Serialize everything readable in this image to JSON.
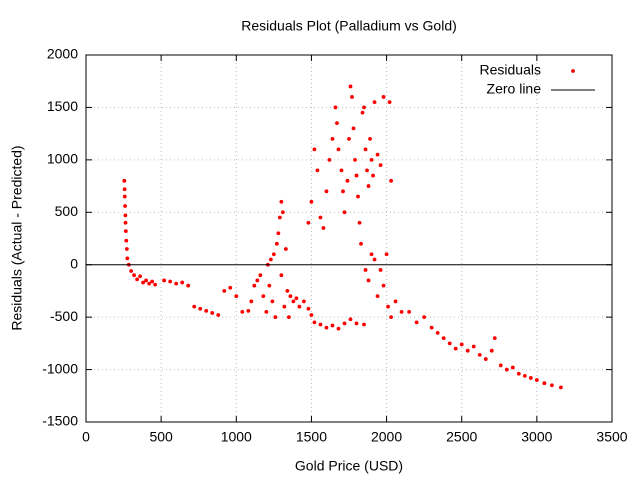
{
  "chart_data": {
    "type": "scatter",
    "title": "Residuals Plot (Palladium vs Gold)",
    "x_label": "Gold Price (USD)",
    "y_label": "Residuals (Actual - Predicted)",
    "xlim": [
      0,
      3500
    ],
    "ylim": [
      -1500,
      2000
    ],
    "xticks": [
      0,
      500,
      1000,
      1500,
      2000,
      2500,
      3000,
      3500
    ],
    "yticks": [
      -1500,
      -1000,
      -500,
      0,
      500,
      1000,
      1500,
      2000
    ],
    "grid": true,
    "legend": "top-right",
    "series": [
      {
        "name": "Residuals",
        "color": "#ff0000",
        "style": "points",
        "x": [
          255,
          257,
          258,
          260,
          262,
          263,
          265,
          268,
          272,
          275,
          285,
          300,
          320,
          340,
          360,
          380,
          400,
          420,
          440,
          460,
          520,
          560,
          600,
          640,
          680,
          720,
          760,
          800,
          840,
          880,
          920,
          960,
          1000,
          1040,
          1080,
          1100,
          1120,
          1140,
          1160,
          1180,
          1200,
          1210,
          1220,
          1230,
          1240,
          1250,
          1260,
          1270,
          1280,
          1290,
          1300,
          1310,
          1300,
          1320,
          1330,
          1340,
          1350,
          1360,
          1380,
          1400,
          1420,
          1450,
          1480,
          1500,
          1520,
          1560,
          1600,
          1640,
          1680,
          1720,
          1760,
          1800,
          1850,
          1480,
          1500,
          1520,
          1540,
          1560,
          1580,
          1600,
          1620,
          1640,
          1660,
          1670,
          1680,
          1700,
          1710,
          1720,
          1740,
          1750,
          1760,
          1770,
          1780,
          1790,
          1800,
          1810,
          1820,
          1830,
          1840,
          1850,
          1860,
          1870,
          1880,
          1890,
          1900,
          1910,
          1920,
          1940,
          1960,
          1980,
          2020,
          2030,
          1860,
          1880,
          1900,
          1920,
          1940,
          1960,
          1980,
          2000,
          2010,
          2030,
          2060,
          2100,
          2150,
          2200,
          2250,
          2300,
          2340,
          2380,
          2420,
          2460,
          2500,
          2540,
          2580,
          2620,
          2660,
          2700,
          2720,
          2760,
          2800,
          2840,
          2880,
          2920,
          2960,
          3000,
          3050,
          3100,
          3160
        ],
        "values": [
          800,
          720,
          650,
          560,
          470,
          400,
          320,
          230,
          150,
          60,
          0,
          -60,
          -100,
          -140,
          -110,
          -170,
          -150,
          -180,
          -160,
          -190,
          -150,
          -160,
          -180,
          -170,
          -200,
          -400,
          -420,
          -440,
          -460,
          -480,
          -250,
          -220,
          -300,
          -450,
          -440,
          -350,
          -200,
          -150,
          -100,
          -300,
          -450,
          0,
          -200,
          50,
          -350,
          100,
          -500,
          200,
          300,
          450,
          600,
          500,
          -100,
          -400,
          150,
          -250,
          -500,
          -300,
          -350,
          -320,
          -400,
          -350,
          -420,
          -480,
          -550,
          -570,
          -600,
          -580,
          -610,
          -560,
          -520,
          -560,
          -570,
          400,
          600,
          1100,
          900,
          450,
          350,
          700,
          1000,
          1200,
          1500,
          1350,
          1100,
          900,
          700,
          500,
          800,
          1200,
          1700,
          1600,
          1300,
          1000,
          850,
          650,
          400,
          200,
          1450,
          1500,
          1100,
          900,
          750,
          1200,
          1000,
          850,
          1550,
          1050,
          950,
          1600,
          1550,
          800,
          -50,
          -150,
          100,
          50,
          -300,
          -50,
          -200,
          100,
          -400,
          -500,
          -350,
          -450,
          -450,
          -550,
          -500,
          -600,
          -650,
          -700,
          -750,
          -800,
          -760,
          -820,
          -780,
          -860,
          -900,
          -820,
          -700,
          -960,
          -1000,
          -980,
          -1040,
          -1060,
          -1080,
          -1100,
          -1130,
          -1150,
          -1170
        ]
      },
      {
        "name": "Zero line",
        "color": "#000000",
        "style": "lines",
        "x": [
          0,
          3500
        ],
        "values": [
          0,
          0
        ]
      }
    ]
  }
}
